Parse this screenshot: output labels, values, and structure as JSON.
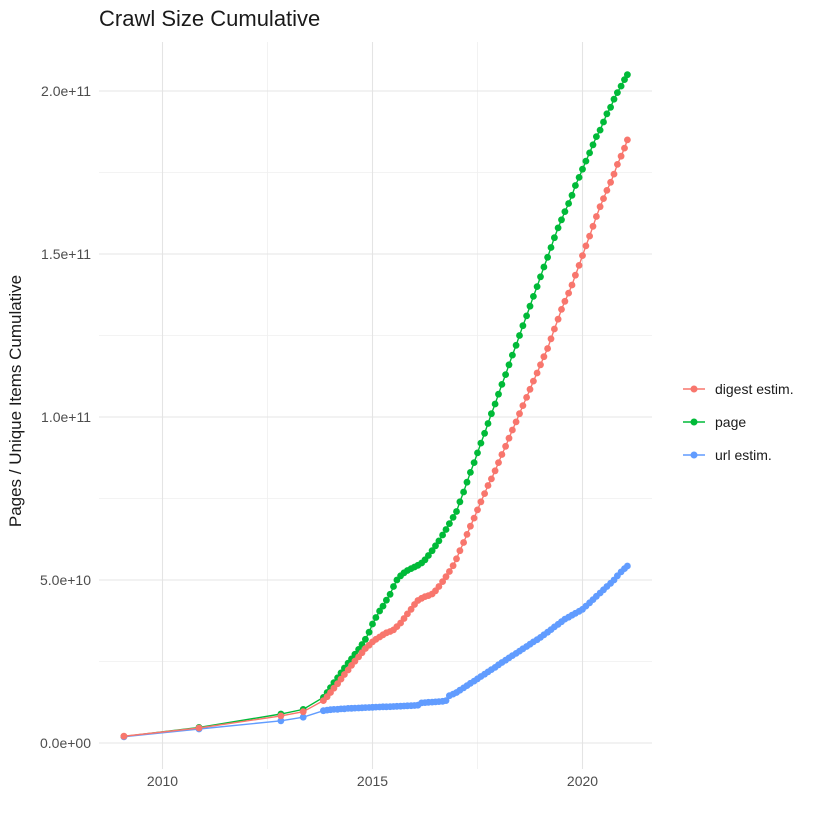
{
  "title": "Crawl Size Cumulative",
  "legend": {
    "items": [
      {
        "label": "digest estim.",
        "color": "#F8766D"
      },
      {
        "label": "page",
        "color": "#00BA38"
      },
      {
        "label": "url estim.",
        "color": "#619CFF"
      }
    ]
  },
  "chart_data": {
    "type": "scatter",
    "title": "Crawl Size Cumulative",
    "xlabel": "",
    "ylabel": "Pages / Unique Items Cumulative",
    "value_unit": "1e9 items (values below are billions)",
    "xlim": [
      2008.48,
      2021.66
    ],
    "ylim": [
      -8,
      215
    ],
    "grid": true,
    "legend_position": "right",
    "x_ticks": [
      {
        "v": 2010,
        "label": "2010"
      },
      {
        "v": 2015,
        "label": "2015"
      },
      {
        "v": 2020,
        "label": "2020"
      }
    ],
    "x_minor": [
      2012.5,
      2017.5
    ],
    "y_ticks": [
      {
        "v": 0,
        "label": "0.0e+00"
      },
      {
        "v": 50,
        "label": "5.0e+10"
      },
      {
        "v": 100,
        "label": "1.0e+11"
      },
      {
        "v": 150,
        "label": "1.5e+11"
      },
      {
        "v": 200,
        "label": "2.0e+11"
      }
    ],
    "y_minor": [
      25,
      75,
      125,
      175
    ],
    "series": [
      {
        "name": "page",
        "color": "#00BA38",
        "points": [
          [
            2009.08,
            2.0
          ],
          [
            2010.87,
            4.8
          ],
          [
            2012.82,
            8.9
          ],
          [
            2013.35,
            10.3
          ],
          [
            2013.83,
            14
          ],
          [
            2013.92,
            15.5
          ],
          [
            2014.0,
            17
          ],
          [
            2014.08,
            18.5
          ],
          [
            2014.17,
            20
          ],
          [
            2014.25,
            21.5
          ],
          [
            2014.33,
            23
          ],
          [
            2014.42,
            24.5
          ],
          [
            2014.5,
            25.8
          ],
          [
            2014.58,
            27.2
          ],
          [
            2014.67,
            28.7
          ],
          [
            2014.75,
            30.2
          ],
          [
            2014.83,
            31.8
          ],
          [
            2014.92,
            34
          ],
          [
            2015.0,
            36.5
          ],
          [
            2015.08,
            38.5
          ],
          [
            2015.17,
            40.5
          ],
          [
            2015.25,
            42
          ],
          [
            2015.33,
            43.8
          ],
          [
            2015.42,
            45.6
          ],
          [
            2015.5,
            48
          ],
          [
            2015.58,
            50
          ],
          [
            2015.67,
            51.3
          ],
          [
            2015.75,
            52.2
          ],
          [
            2015.83,
            52.9
          ],
          [
            2015.92,
            53.5
          ],
          [
            2016.0,
            54
          ],
          [
            2016.08,
            54.5
          ],
          [
            2016.17,
            55.2
          ],
          [
            2016.25,
            56.2
          ],
          [
            2016.33,
            57.5
          ],
          [
            2016.42,
            59
          ],
          [
            2016.5,
            60.5
          ],
          [
            2016.58,
            62
          ],
          [
            2016.67,
            63.8
          ],
          [
            2016.75,
            65.5
          ],
          [
            2016.83,
            67.3
          ],
          [
            2016.92,
            69.2
          ],
          [
            2017.0,
            71
          ],
          [
            2017.08,
            74
          ],
          [
            2017.17,
            77
          ],
          [
            2017.25,
            80
          ],
          [
            2017.33,
            83
          ],
          [
            2017.42,
            86
          ],
          [
            2017.5,
            89
          ],
          [
            2017.58,
            92
          ],
          [
            2017.67,
            95
          ],
          [
            2017.75,
            98
          ],
          [
            2017.83,
            101
          ],
          [
            2017.92,
            104
          ],
          [
            2018.0,
            107
          ],
          [
            2018.08,
            110
          ],
          [
            2018.17,
            113
          ],
          [
            2018.25,
            116
          ],
          [
            2018.33,
            119
          ],
          [
            2018.42,
            122
          ],
          [
            2018.5,
            125
          ],
          [
            2018.58,
            128
          ],
          [
            2018.67,
            131
          ],
          [
            2018.75,
            134
          ],
          [
            2018.83,
            137
          ],
          [
            2018.92,
            140
          ],
          [
            2019.0,
            143
          ],
          [
            2019.08,
            146
          ],
          [
            2019.17,
            149
          ],
          [
            2019.25,
            152
          ],
          [
            2019.33,
            155
          ],
          [
            2019.42,
            158
          ],
          [
            2019.5,
            160.5
          ],
          [
            2019.58,
            163
          ],
          [
            2019.67,
            165.5
          ],
          [
            2019.75,
            168
          ],
          [
            2019.83,
            171
          ],
          [
            2019.92,
            173.5
          ],
          [
            2020.0,
            176
          ],
          [
            2020.08,
            178.5
          ],
          [
            2020.17,
            181
          ],
          [
            2020.25,
            183.5
          ],
          [
            2020.33,
            186
          ],
          [
            2020.42,
            188
          ],
          [
            2020.5,
            190.5
          ],
          [
            2020.58,
            193
          ],
          [
            2020.67,
            195
          ],
          [
            2020.75,
            197.5
          ],
          [
            2020.83,
            199.5
          ],
          [
            2020.92,
            201.5
          ],
          [
            2021.0,
            203.5
          ],
          [
            2021.07,
            205
          ]
        ]
      },
      {
        "name": "url estim.",
        "color": "#619CFF",
        "points": [
          [
            2009.08,
            1.9
          ],
          [
            2010.87,
            4.3
          ],
          [
            2012.82,
            6.8
          ],
          [
            2013.35,
            7.9
          ],
          [
            2013.83,
            9.9
          ],
          [
            2013.92,
            10.1
          ],
          [
            2014.0,
            10.2
          ],
          [
            2014.08,
            10.3
          ],
          [
            2014.17,
            10.35
          ],
          [
            2014.25,
            10.45
          ],
          [
            2014.33,
            10.5
          ],
          [
            2014.42,
            10.6
          ],
          [
            2014.5,
            10.65
          ],
          [
            2014.58,
            10.7
          ],
          [
            2014.67,
            10.75
          ],
          [
            2014.75,
            10.8
          ],
          [
            2014.83,
            10.85
          ],
          [
            2014.92,
            10.9
          ],
          [
            2015.0,
            10.95
          ],
          [
            2015.08,
            11.0
          ],
          [
            2015.17,
            11.05
          ],
          [
            2015.25,
            11.1
          ],
          [
            2015.33,
            11.1
          ],
          [
            2015.42,
            11.15
          ],
          [
            2015.5,
            11.2
          ],
          [
            2015.58,
            11.25
          ],
          [
            2015.67,
            11.3
          ],
          [
            2015.75,
            11.35
          ],
          [
            2015.83,
            11.4
          ],
          [
            2015.92,
            11.45
          ],
          [
            2016.0,
            11.5
          ],
          [
            2016.08,
            11.6
          ],
          [
            2016.17,
            12.3
          ],
          [
            2016.25,
            12.4
          ],
          [
            2016.33,
            12.5
          ],
          [
            2016.42,
            12.55
          ],
          [
            2016.5,
            12.6
          ],
          [
            2016.58,
            12.7
          ],
          [
            2016.67,
            12.8
          ],
          [
            2016.75,
            13.0
          ],
          [
            2016.83,
            14.5
          ],
          [
            2016.92,
            15.0
          ],
          [
            2017.0,
            15.5
          ],
          [
            2017.08,
            16.2
          ],
          [
            2017.17,
            16.9
          ],
          [
            2017.25,
            17.6
          ],
          [
            2017.33,
            18.3
          ],
          [
            2017.42,
            19.0
          ],
          [
            2017.5,
            19.7
          ],
          [
            2017.58,
            20.4
          ],
          [
            2017.67,
            21.1
          ],
          [
            2017.75,
            21.8
          ],
          [
            2017.83,
            22.5
          ],
          [
            2017.92,
            23.2
          ],
          [
            2018.0,
            24.0
          ],
          [
            2018.08,
            24.7
          ],
          [
            2018.17,
            25.4
          ],
          [
            2018.25,
            26.1
          ],
          [
            2018.33,
            26.8
          ],
          [
            2018.42,
            27.5
          ],
          [
            2018.5,
            28.2
          ],
          [
            2018.58,
            28.9
          ],
          [
            2018.67,
            29.6
          ],
          [
            2018.75,
            30.3
          ],
          [
            2018.83,
            31.0
          ],
          [
            2018.92,
            31.7
          ],
          [
            2019.0,
            32.4
          ],
          [
            2019.08,
            33.2
          ],
          [
            2019.17,
            34.0
          ],
          [
            2019.25,
            34.8
          ],
          [
            2019.33,
            35.6
          ],
          [
            2019.42,
            36.4
          ],
          [
            2019.5,
            37.2
          ],
          [
            2019.58,
            38.0
          ],
          [
            2019.67,
            38.6
          ],
          [
            2019.75,
            39.2
          ],
          [
            2019.83,
            39.8
          ],
          [
            2019.92,
            40.4
          ],
          [
            2020.0,
            41.0
          ],
          [
            2020.08,
            42.0
          ],
          [
            2020.17,
            43.0
          ],
          [
            2020.25,
            44.0
          ],
          [
            2020.33,
            45.0
          ],
          [
            2020.42,
            46.0
          ],
          [
            2020.5,
            47.0
          ],
          [
            2020.58,
            48.0
          ],
          [
            2020.67,
            49.0
          ],
          [
            2020.75,
            50.0
          ],
          [
            2020.83,
            51.3
          ],
          [
            2020.92,
            52.5
          ],
          [
            2021.0,
            53.5
          ],
          [
            2021.07,
            54.3
          ]
        ]
      },
      {
        "name": "digest estim.",
        "color": "#F8766D",
        "points": [
          [
            2009.08,
            2.1
          ],
          [
            2010.87,
            4.6
          ],
          [
            2012.82,
            8.3
          ],
          [
            2013.35,
            9.6
          ],
          [
            2013.83,
            13
          ],
          [
            2013.92,
            14.2
          ],
          [
            2014.0,
            15.5
          ],
          [
            2014.08,
            16.8
          ],
          [
            2014.17,
            18.2
          ],
          [
            2014.25,
            19.6
          ],
          [
            2014.33,
            21
          ],
          [
            2014.42,
            22.4
          ],
          [
            2014.5,
            23.8
          ],
          [
            2014.58,
            25.1
          ],
          [
            2014.67,
            26.4
          ],
          [
            2014.75,
            27.7
          ],
          [
            2014.83,
            29
          ],
          [
            2014.92,
            30
          ],
          [
            2015.0,
            31
          ],
          [
            2015.08,
            31.8
          ],
          [
            2015.17,
            32.5
          ],
          [
            2015.25,
            33.2
          ],
          [
            2015.33,
            33.8
          ],
          [
            2015.42,
            34.2
          ],
          [
            2015.5,
            34.7
          ],
          [
            2015.58,
            35.7
          ],
          [
            2015.67,
            36.8
          ],
          [
            2015.75,
            38.2
          ],
          [
            2015.83,
            39.6
          ],
          [
            2015.92,
            41
          ],
          [
            2016.0,
            42.5
          ],
          [
            2016.08,
            43.7
          ],
          [
            2016.17,
            44.4
          ],
          [
            2016.25,
            44.9
          ],
          [
            2016.33,
            45.2
          ],
          [
            2016.42,
            45.7
          ],
          [
            2016.5,
            46.7
          ],
          [
            2016.58,
            48
          ],
          [
            2016.67,
            49.5
          ],
          [
            2016.75,
            51
          ],
          [
            2016.83,
            52.6
          ],
          [
            2016.92,
            54.4
          ],
          [
            2017.0,
            56.5
          ],
          [
            2017.08,
            59
          ],
          [
            2017.17,
            61.5
          ],
          [
            2017.25,
            64
          ],
          [
            2017.33,
            66.5
          ],
          [
            2017.42,
            69
          ],
          [
            2017.5,
            71.5
          ],
          [
            2017.58,
            74
          ],
          [
            2017.67,
            76.5
          ],
          [
            2017.75,
            79
          ],
          [
            2017.83,
            81
          ],
          [
            2017.92,
            83.5
          ],
          [
            2018.0,
            86
          ],
          [
            2018.08,
            88.5
          ],
          [
            2018.17,
            91
          ],
          [
            2018.25,
            93.5
          ],
          [
            2018.33,
            96
          ],
          [
            2018.42,
            98.5
          ],
          [
            2018.5,
            101
          ],
          [
            2018.58,
            103.5
          ],
          [
            2018.67,
            106
          ],
          [
            2018.75,
            108.5
          ],
          [
            2018.83,
            111
          ],
          [
            2018.92,
            113.5
          ],
          [
            2019.0,
            116
          ],
          [
            2019.08,
            118.5
          ],
          [
            2019.17,
            121
          ],
          [
            2019.25,
            124
          ],
          [
            2019.33,
            127
          ],
          [
            2019.42,
            130
          ],
          [
            2019.5,
            133
          ],
          [
            2019.58,
            135.5
          ],
          [
            2019.67,
            138
          ],
          [
            2019.75,
            140.5
          ],
          [
            2019.83,
            143.5
          ],
          [
            2019.92,
            146.5
          ],
          [
            2020.0,
            149.5
          ],
          [
            2020.08,
            152.5
          ],
          [
            2020.17,
            155.5
          ],
          [
            2020.25,
            158.5
          ],
          [
            2020.33,
            161.5
          ],
          [
            2020.42,
            164.5
          ],
          [
            2020.5,
            167
          ],
          [
            2020.58,
            169.5
          ],
          [
            2020.67,
            172
          ],
          [
            2020.75,
            174.5
          ],
          [
            2020.83,
            177.5
          ],
          [
            2020.92,
            180
          ],
          [
            2021.0,
            182.5
          ],
          [
            2021.07,
            185
          ]
        ]
      }
    ]
  }
}
